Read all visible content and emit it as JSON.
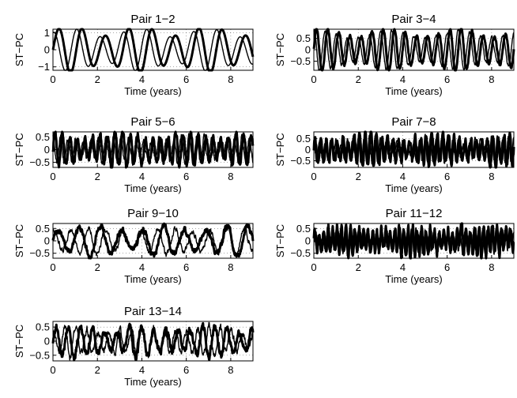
{
  "chart_data": [
    {
      "type": "line",
      "title": "Pair 1−2",
      "xlabel": "Time (years)",
      "ylabel": "ST−PC",
      "xlim": [
        0,
        9
      ],
      "ylim": [
        -1.2,
        1.2
      ],
      "xticks": [
        0,
        2,
        4,
        6,
        8
      ],
      "yticks": [
        -1,
        0,
        1
      ],
      "ytick_labels": [
        "−1",
        "0",
        "1"
      ],
      "grid": true,
      "series": [
        {
          "period": 1.05,
          "amplitude": 1.1,
          "phase": 0.0,
          "noise": 0.0,
          "style": "thick"
        },
        {
          "period": 1.05,
          "amplitude": 1.0,
          "phase": 1.4,
          "noise": 0.0,
          "style": "thin"
        }
      ]
    },
    {
      "type": "line",
      "title": "Pair 3−4",
      "xlabel": "Time (years)",
      "ylabel": "ST−PC",
      "xlim": [
        0,
        9
      ],
      "ylim": [
        -0.9,
        0.9
      ],
      "xticks": [
        0,
        2,
        4,
        6,
        8
      ],
      "yticks": [
        -0.5,
        0,
        0.5
      ],
      "ytick_labels": [
        "−0.5",
        "0",
        "0.5"
      ],
      "grid": true,
      "series": [
        {
          "period": 0.5,
          "amplitude": 0.75,
          "phase": 0.0,
          "noise": 0.05,
          "style": "thick"
        },
        {
          "period": 0.5,
          "amplitude": 0.7,
          "phase": 1.5,
          "noise": 0.05,
          "style": "thin"
        }
      ]
    },
    {
      "type": "line",
      "title": "Pair 5−6",
      "xlabel": "Time (years)",
      "ylabel": "ST−PC",
      "xlim": [
        0,
        9
      ],
      "ylim": [
        -0.7,
        0.7
      ],
      "xticks": [
        0,
        2,
        4,
        6,
        8
      ],
      "yticks": [
        -0.5,
        0,
        0.5
      ],
      "ytick_labels": [
        "−0.5",
        "0",
        "0.5"
      ],
      "grid": true,
      "series": [
        {
          "period": 0.34,
          "amplitude": 0.55,
          "phase": 0.0,
          "noise": 0.12,
          "style": "thick"
        },
        {
          "period": 0.34,
          "amplitude": 0.45,
          "phase": 1.5,
          "noise": 0.1,
          "style": "thin"
        }
      ]
    },
    {
      "type": "line",
      "title": "Pair 7−8",
      "xlabel": "Time (years)",
      "ylabel": "ST−PC",
      "xlim": [
        0,
        9
      ],
      "ylim": [
        -0.8,
        0.8
      ],
      "xticks": [
        0,
        2,
        4,
        6,
        8
      ],
      "yticks": [
        -0.5,
        0,
        0.5
      ],
      "ytick_labels": [
        "−0.5",
        "0",
        "0.5"
      ],
      "grid": true,
      "series": [
        {
          "period": 0.25,
          "amplitude": 0.55,
          "phase": 0.0,
          "noise": 0.15,
          "style": "thick"
        },
        {
          "period": 0.25,
          "amplitude": 0.45,
          "phase": 1.5,
          "noise": 0.12,
          "style": "thin"
        }
      ]
    },
    {
      "type": "line",
      "title": "Pair 9−10",
      "xlabel": "Time (years)",
      "ylabel": "ST−PC",
      "xlim": [
        0,
        9
      ],
      "ylim": [
        -0.7,
        0.7
      ],
      "xticks": [
        0,
        2,
        4,
        6,
        8
      ],
      "yticks": [
        -0.5,
        0,
        0.5
      ],
      "ytick_labels": [
        "−0.5",
        "0",
        "0.5"
      ],
      "grid": true,
      "series": [
        {
          "period": 0.95,
          "amplitude": 0.5,
          "phase": 0.0,
          "noise": 0.08,
          "style": "thick"
        },
        {
          "period": 0.78,
          "amplitude": 0.45,
          "phase": 1.2,
          "noise": 0.08,
          "style": "thin"
        }
      ]
    },
    {
      "type": "line",
      "title": "Pair 11−12",
      "xlabel": "Time (years)",
      "ylabel": "ST−PC",
      "xlim": [
        0,
        9
      ],
      "ylim": [
        -0.7,
        0.7
      ],
      "xticks": [
        0,
        2,
        4,
        6,
        8
      ],
      "yticks": [
        -0.5,
        0,
        0.5
      ],
      "ytick_labels": [
        "−0.5",
        "0",
        "0.5"
      ],
      "grid": true,
      "series": [
        {
          "period": 0.2,
          "amplitude": 0.45,
          "phase": 0.0,
          "noise": 0.15,
          "style": "thick"
        },
        {
          "period": 0.2,
          "amplitude": 0.35,
          "phase": 1.5,
          "noise": 0.12,
          "style": "thin"
        }
      ]
    },
    {
      "type": "line",
      "title": "Pair 13−14",
      "xlabel": "Time (years)",
      "ylabel": "ST−PC",
      "xlim": [
        0,
        9
      ],
      "ylim": [
        -0.7,
        0.7
      ],
      "xticks": [
        0,
        2,
        4,
        6,
        8
      ],
      "yticks": [
        -0.5,
        0,
        0.5
      ],
      "ytick_labels": [
        "−0.5",
        "0",
        "0.5"
      ],
      "grid": true,
      "series": [
        {
          "period": 0.55,
          "amplitude": 0.45,
          "phase": 0.0,
          "noise": 0.1,
          "style": "thick"
        },
        {
          "period": 0.5,
          "amplitude": 0.4,
          "phase": 1.3,
          "noise": 0.1,
          "style": "thin"
        }
      ]
    }
  ]
}
